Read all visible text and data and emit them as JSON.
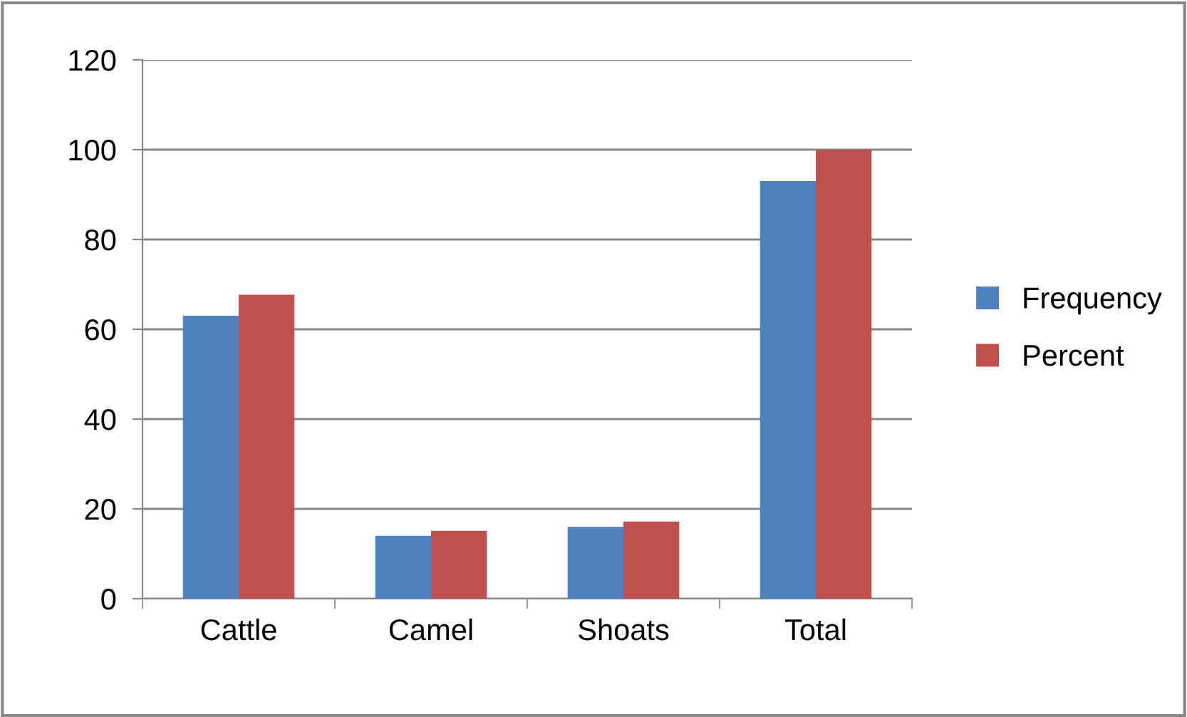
{
  "chart_data": {
    "type": "bar",
    "categories": [
      "Cattle",
      "Camel",
      "Shoats",
      "Total"
    ],
    "series": [
      {
        "name": "Frequency",
        "color": "#4f81bd",
        "values": [
          63,
          14,
          16,
          93
        ]
      },
      {
        "name": "Percent",
        "color": "#c0504d",
        "values": [
          67.7,
          15.1,
          17.2,
          100
        ]
      }
    ],
    "ylim": [
      0,
      120
    ],
    "yticks": [
      0,
      20,
      40,
      60,
      80,
      100,
      120
    ],
    "grid": "y",
    "legend": "right"
  }
}
